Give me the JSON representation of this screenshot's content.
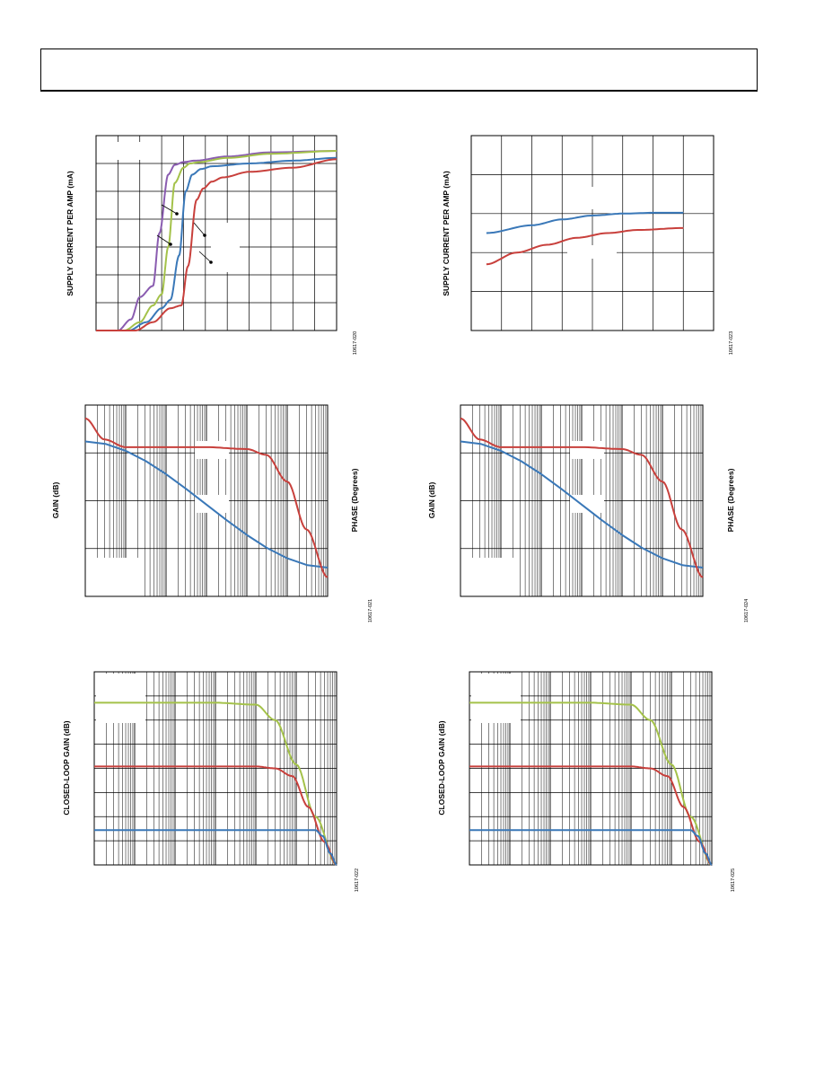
{
  "header": {
    "text": ""
  },
  "colors": {
    "blue": "#3a78b8",
    "red": "#c8403c",
    "green": "#a4c24a",
    "purple": "#8a5cb0"
  },
  "labels": {
    "supply1": "SUPPLY CURRENT PER AMP (mA)",
    "supply2": "SUPPLY CURRENT PER AMP (mA)",
    "gain1": "GAIN (dB)",
    "phase1": "PHASE (Degrees)",
    "gain2": "GAIN (dB)",
    "phase2": "PHASE (Degrees)",
    "clg1": "CLOSED-LOOP GAIN (dB)",
    "clg2": "CLOSED-LOOP GAIN (dB)"
  },
  "figure_ids": {
    "f020": "10617-020",
    "f021": "10617-021",
    "f022": "10617-022",
    "f023": "10617-023",
    "f024": "10617-024",
    "f025": "10617-025"
  },
  "chart_data": [
    {
      "id": "supply-vs-voltage",
      "type": "line",
      "xlim": [
        0,
        11
      ],
      "ylim": [
        0,
        7
      ],
      "series": [
        {
          "color": "purple",
          "x": [
            0,
            1,
            1.6,
            2,
            2.6,
            2.9,
            3.3,
            3.6,
            4,
            4.5,
            6,
            8,
            11
          ],
          "y": [
            0,
            0,
            0.4,
            1.2,
            1.6,
            3.5,
            5.6,
            5.95,
            6.05,
            6.1,
            6.25,
            6.4,
            6.45
          ]
        },
        {
          "color": "green",
          "x": [
            0,
            1.3,
            2,
            2.6,
            3,
            3.3,
            3.6,
            4,
            4.3,
            4.7,
            6,
            8,
            11
          ],
          "y": [
            0,
            0,
            0.3,
            0.9,
            1.3,
            3,
            5.3,
            5.85,
            6,
            6.05,
            6.2,
            6.35,
            6.45
          ]
        },
        {
          "color": "blue",
          "x": [
            0,
            1.5,
            2.3,
            3,
            3.4,
            3.8,
            4.1,
            4.4,
            4.8,
            5.3,
            7,
            9,
            11
          ],
          "y": [
            0,
            0,
            0.3,
            0.8,
            1.1,
            2.7,
            5,
            5.6,
            5.8,
            5.9,
            6,
            6.1,
            6.2
          ]
        },
        {
          "color": "red",
          "x": [
            0,
            1.8,
            2.6,
            3.4,
            3.9,
            4.2,
            4.6,
            4.9,
            5.3,
            5.8,
            7,
            9,
            11
          ],
          "y": [
            0,
            0,
            0.3,
            0.8,
            0.9,
            2.3,
            4.7,
            5.1,
            5.35,
            5.5,
            5.7,
            5.85,
            6.15
          ]
        }
      ]
    },
    {
      "id": "supply-vs-temp",
      "type": "line",
      "xlim": [
        0,
        8
      ],
      "ylim": [
        0,
        5
      ],
      "series": [
        {
          "color": "blue",
          "x": [
            0.5,
            2,
            3,
            4,
            5,
            6,
            7
          ],
          "y": [
            2.5,
            2.7,
            2.85,
            2.95,
            3,
            3.02,
            3.02
          ]
        },
        {
          "color": "red",
          "x": [
            0.5,
            1.5,
            2.5,
            3.5,
            4.5,
            5.5,
            7
          ],
          "y": [
            1.7,
            2,
            2.2,
            2.38,
            2.5,
            2.58,
            2.63
          ]
        }
      ]
    },
    {
      "id": "open-loop-gain-phase-1",
      "type": "line",
      "log_x": true,
      "xlim": [
        1,
        1000000.0
      ],
      "series": [
        {
          "name": "gain",
          "color": "blue",
          "x": [
            1,
            1000000.0
          ],
          "y": [
            0.81,
            0.15
          ]
        },
        {
          "name": "phase",
          "color": "red",
          "x": [
            1,
            3,
            10,
            100,
            1000,
            10000,
            30000,
            100000,
            300000,
            1000000
          ],
          "y": [
            0.93,
            0.82,
            0.78,
            0.78,
            0.78,
            0.77,
            0.74,
            0.6,
            0.35,
            0.1
          ]
        }
      ]
    },
    {
      "id": "open-loop-gain-phase-2",
      "type": "line",
      "log_x": true,
      "xlim": [
        1,
        1000000.0
      ],
      "series": [
        {
          "name": "gain",
          "color": "blue",
          "x": [
            1,
            1000000.0
          ],
          "y": [
            0.81,
            0.15
          ]
        },
        {
          "name": "phase",
          "color": "red",
          "x": [
            1,
            3,
            10,
            100,
            1000,
            10000,
            30000,
            100000,
            300000,
            1000000
          ],
          "y": [
            0.93,
            0.82,
            0.78,
            0.78,
            0.78,
            0.77,
            0.74,
            0.6,
            0.35,
            0.1
          ]
        }
      ]
    },
    {
      "id": "closed-loop-1",
      "type": "line",
      "log_x": true,
      "xlim": [
        1,
        1000000.0
      ],
      "ylim": [
        0,
        1
      ],
      "series": [
        {
          "color": "green",
          "x": [
            1,
            1000,
            10000,
            30000,
            100000,
            300000,
            1000000
          ],
          "y": [
            0.84,
            0.84,
            0.83,
            0.75,
            0.52,
            0.25,
            0
          ]
        },
        {
          "color": "red",
          "x": [
            1,
            10000,
            30000,
            80000,
            200000,
            500000,
            1000000
          ],
          "y": [
            0.51,
            0.51,
            0.5,
            0.46,
            0.3,
            0.12,
            0
          ]
        },
        {
          "color": "blue",
          "x": [
            1,
            100000,
            300000,
            450000,
            700000,
            1000000
          ],
          "y": [
            0.18,
            0.18,
            0.18,
            0.15,
            0.06,
            0
          ]
        }
      ]
    },
    {
      "id": "closed-loop-2",
      "type": "line",
      "log_x": true,
      "xlim": [
        1,
        1000000.0
      ],
      "ylim": [
        0,
        1
      ],
      "series": [
        {
          "color": "green",
          "x": [
            1,
            1000,
            10000,
            30000,
            100000,
            300000,
            1000000
          ],
          "y": [
            0.84,
            0.84,
            0.83,
            0.75,
            0.52,
            0.25,
            0
          ]
        },
        {
          "color": "red",
          "x": [
            1,
            10000,
            30000,
            80000,
            200000,
            500000,
            1000000
          ],
          "y": [
            0.51,
            0.51,
            0.5,
            0.46,
            0.3,
            0.12,
            0
          ]
        },
        {
          "color": "blue",
          "x": [
            1,
            100000,
            300000,
            450000,
            700000,
            1000000
          ],
          "y": [
            0.18,
            0.18,
            0.18,
            0.15,
            0.06,
            0
          ]
        }
      ]
    }
  ]
}
